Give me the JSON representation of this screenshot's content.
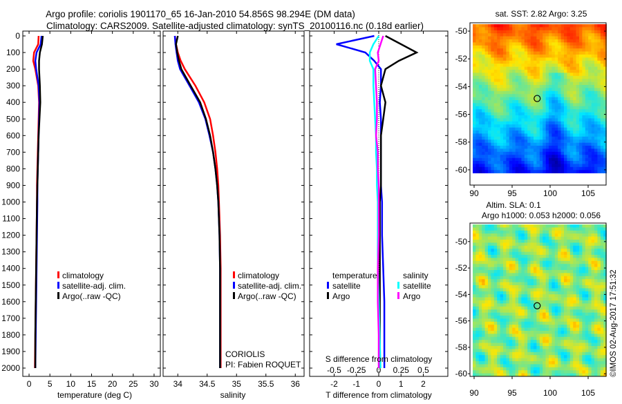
{
  "header": {
    "line1": "Argo profile: coriolis 1901170_65 16-Jan-2010 54.856S 98.294E (DM data)",
    "line2": "Climatology: CARS2009. Satellite-adjusted climatology: synTS_20100116.nc (0.18d earlier)"
  },
  "colors": {
    "climatology": "#ff0000",
    "satellite": "#0000ff",
    "argo": "#000000",
    "sal_satellite": "#00ffff",
    "sal_argo": "#ff00ff"
  },
  "depth_ticks": [
    "0",
    "100",
    "200",
    "300",
    "400",
    "500",
    "600",
    "700",
    "800",
    "900",
    "1000",
    "1100",
    "1200",
    "1300",
    "1400",
    "1500",
    "1600",
    "1700",
    "1800",
    "1900",
    "2000"
  ],
  "chart_data": [
    {
      "type": "line",
      "id": "temperature",
      "xlabel": "temperature (deg C)",
      "xlim": [
        -1.5,
        31.5
      ],
      "ylim": [
        2060,
        -30
      ],
      "xticks": [
        "0",
        "5",
        "10",
        "15",
        "20",
        "25",
        "30"
      ],
      "xtick_values": [
        0,
        5,
        10,
        15,
        20,
        25,
        30
      ],
      "depth": [
        0,
        50,
        100,
        150,
        200,
        300,
        400,
        500,
        600,
        700,
        800,
        900,
        1000,
        1200,
        1400,
        1600,
        1800,
        2000
      ],
      "series": [
        {
          "name": "climatology",
          "color": "#ff0000",
          "values": [
            2.3,
            2.2,
            1.2,
            1.0,
            1.5,
            2.2,
            2.4,
            2.3,
            2.2,
            2.1,
            2.0,
            1.9,
            1.9,
            1.8,
            1.7,
            1.6,
            1.5,
            1.4
          ]
        },
        {
          "name": "satellite-adj. clim.",
          "color": "#0000ff",
          "values": [
            3.0,
            2.8,
            1.8,
            1.5,
            1.7,
            2.3,
            2.5,
            2.4,
            2.3,
            2.2,
            2.1,
            2.0,
            2.0,
            1.9,
            1.8,
            1.7,
            1.6,
            1.5
          ]
        },
        {
          "name": "Argo(..raw -QC)",
          "color": "#000000",
          "values": [
            3.3,
            3.1,
            2.6,
            2.4,
            2.4,
            2.6,
            2.7,
            2.5,
            2.3,
            2.2,
            2.1,
            2.0,
            1.9,
            1.8,
            1.7,
            1.6,
            1.5,
            1.5
          ]
        }
      ],
      "legend": [
        "climatology",
        "satellite-adj. clim.",
        "Argo(..raw -QC)"
      ]
    },
    {
      "type": "line",
      "id": "salinity",
      "xlabel": "salinity",
      "xlim": [
        33.75,
        36.15
      ],
      "ylim": [
        2060,
        -30
      ],
      "xticks": [
        "34",
        "34.5",
        "35",
        "35.5",
        "36"
      ],
      "xtick_values": [
        34,
        34.5,
        35,
        35.5,
        36
      ],
      "depth": [
        0,
        50,
        100,
        150,
        200,
        300,
        400,
        500,
        600,
        700,
        800,
        900,
        1000,
        1200,
        1400,
        1600,
        1800,
        2000
      ],
      "series": [
        {
          "name": "climatology",
          "color": "#ff0000",
          "values": [
            33.95,
            33.97,
            34.0,
            34.05,
            34.12,
            34.3,
            34.45,
            34.55,
            34.6,
            34.64,
            34.67,
            34.69,
            34.7,
            34.72,
            34.73,
            34.73,
            34.73,
            34.73
          ]
        },
        {
          "name": "satellite-adj. clim.",
          "color": "#0000ff",
          "values": [
            33.95,
            33.96,
            33.98,
            34.0,
            34.04,
            34.2,
            34.36,
            34.47,
            34.54,
            34.6,
            34.64,
            34.67,
            34.69,
            34.71,
            34.72,
            34.72,
            34.72,
            34.72
          ]
        },
        {
          "name": "Argo(..raw -QC)",
          "color": "#000000",
          "values": [
            34.0,
            33.97,
            33.99,
            34.02,
            34.06,
            34.22,
            34.38,
            34.48,
            34.55,
            34.6,
            34.64,
            34.67,
            34.69,
            34.71,
            34.72,
            34.72,
            34.72,
            34.72
          ]
        }
      ],
      "legend": [
        "climatology",
        "satellite-adj. clim.",
        "Argo(..raw -QC)"
      ],
      "annotation": [
        "CORIOLIS",
        "PI: Fabien ROQUET"
      ]
    },
    {
      "type": "line",
      "id": "difference",
      "xlabel": "T difference from climatology",
      "x2label": "S difference from climatology",
      "xlim": [
        -3.1,
        3.1
      ],
      "ylim": [
        2060,
        -30
      ],
      "xticks": [
        "-2",
        "-1",
        "0",
        "1",
        "2"
      ],
      "xtick_values": [
        -2,
        -1,
        0,
        1,
        2
      ],
      "x2ticks": [
        "-0.5",
        "-0.25",
        "0",
        "0.25",
        "0.5"
      ],
      "depth": [
        0,
        50,
        100,
        150,
        200,
        300,
        400,
        500,
        600,
        700,
        800,
        900,
        1000,
        1200,
        1400,
        1600,
        1800,
        2000
      ],
      "series": [
        {
          "name": "temperature satellite",
          "color": "#0000ff",
          "units": "T",
          "values": [
            -0.2,
            -1.9,
            -0.6,
            -0.2,
            0.1,
            0.1,
            0.05,
            0.1,
            0.1,
            0.1,
            0.1,
            0.1,
            0.15,
            0.15,
            0.2,
            0.25,
            0.25,
            0.25
          ]
        },
        {
          "name": "temperature Argo",
          "color": "#000000",
          "units": "T",
          "values": [
            0.3,
            1.0,
            1.7,
            0.9,
            0.3,
            0.1,
            0.3,
            0.2,
            0.1,
            0.1,
            0.1,
            0.1,
            0.05,
            0.05,
            0.05,
            0.05,
            0.05,
            0.05
          ]
        },
        {
          "name": "salinity satellite",
          "color": "#00ffff",
          "units": "S",
          "values": [
            0,
            -0.06,
            -0.1,
            -0.1,
            -0.06,
            -0.06,
            -0.05,
            -0.04,
            -0.03,
            -0.03,
            -0.02,
            -0.02,
            -0.01,
            -0.01,
            -0.01,
            0,
            0.01,
            0.02
          ]
        },
        {
          "name": "salinity Argo",
          "color": "#ff00ff",
          "units": "S",
          "values": [
            0.05,
            0.02,
            -0.01,
            0,
            -0.04,
            -0.03,
            -0.02,
            -0.02,
            -0.03,
            -0.01,
            -0.01,
            0,
            0,
            0,
            -0.01,
            -0.01,
            0,
            0
          ]
        }
      ],
      "legend": {
        "temp_head": "temperature",
        "sal_head": "salinity",
        "satellite": "satellite",
        "argo": "Argo"
      }
    }
  ],
  "maps": [
    {
      "title": "sat. SST: 2.82 Argo: 3.25",
      "subtitle": "",
      "kind": "sst"
    },
    {
      "title": "Altim. SLA: 0.1",
      "subtitle": "Argo h1000: 0.053 h2000: 0.056",
      "kind": "sla"
    }
  ],
  "map_axes": {
    "lat_ticks": [
      "-50",
      "-52",
      "-54",
      "-56",
      "-58",
      "-60"
    ],
    "lon_ticks": [
      "90",
      "95",
      "100",
      "105"
    ],
    "marker": {
      "lon": 98.294,
      "lat": -54.856
    }
  },
  "stamp": "©IMOS 02-Aug-2017 17:51:32"
}
